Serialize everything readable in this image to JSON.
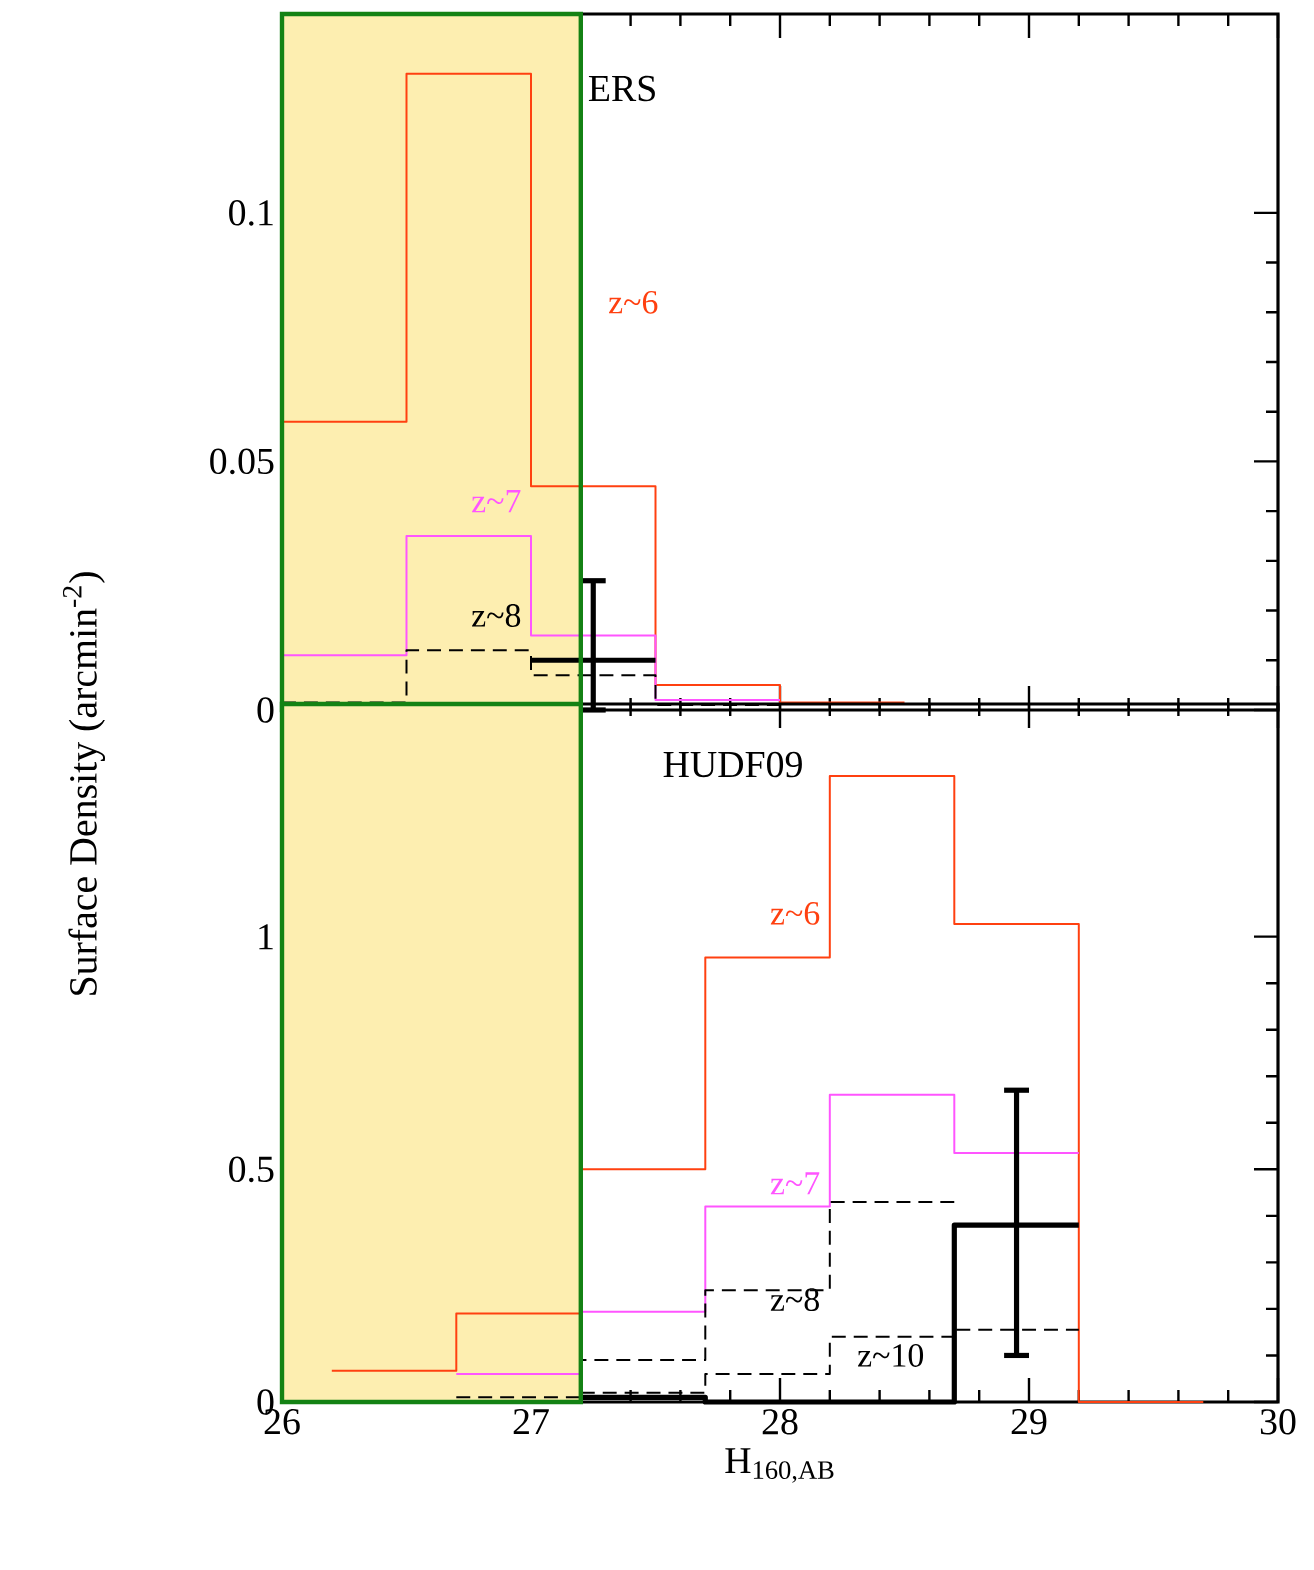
{
  "chart_data": [
    {
      "type": "step",
      "title": "ERS",
      "ylabel": "Surface Density (arcmin$^{-2}$)",
      "xlim": [
        26,
        30
      ],
      "ylim": [
        0,
        0.14
      ],
      "xticks": [
        26,
        27,
        28,
        29,
        30
      ],
      "yticks": [
        0,
        0.05,
        0.1
      ],
      "tick_labels": "y",
      "bands": [
        {
          "axis": "x",
          "from": 26,
          "to": 27.2,
          "color": "#fdeeb0"
        }
      ],
      "series": [
        {
          "name": "z~6",
          "color": "#ff4010",
          "line_style": "solid",
          "x": [
            26,
            26.5,
            27,
            27.5,
            28,
            28.5
          ],
          "values": [
            0.058,
            0.128,
            0.045,
            0.005,
            0.0015,
            0.0015
          ]
        },
        {
          "name": "z~7",
          "color": "#ff55ff",
          "line_style": "solid",
          "x": [
            26,
            26.5,
            27,
            27.5,
            28
          ],
          "values": [
            0.011,
            0.035,
            0.015,
            0.002,
            0.002
          ]
        },
        {
          "name": "z~8",
          "color": "#000000",
          "line_style": "dashed",
          "x": [
            26,
            26.5,
            27,
            27.5,
            28
          ],
          "values": [
            0.0015,
            0.012,
            0.007,
            0.001,
            0.001
          ]
        },
        {
          "color": "#000000",
          "line_style": "solid",
          "x": [
            27,
            27.25,
            27.5
          ],
          "values": [
            0.01,
            0.01,
            0.01
          ],
          "errors": [
            null,
            [
              0,
              0.026
            ],
            null
          ]
        }
      ]
    },
    {
      "type": "step",
      "title": "HUDF09",
      "xlabel": "H$_{160,AB}$",
      "xlim": [
        26,
        30
      ],
      "ylim": [
        0,
        1.5
      ],
      "xticks": [
        26,
        27,
        28,
        29,
        30
      ],
      "yticks": [
        0,
        0.5,
        1
      ],
      "bands": [
        {
          "axis": "x",
          "from": 26,
          "to": 27.2,
          "color": "#fdeeb0"
        }
      ],
      "series": [
        {
          "name": "z~6",
          "color": "#ff4010",
          "line_style": "solid",
          "x": [
            26.2,
            26.7,
            27.2,
            27.7,
            28.2,
            28.7,
            29.2,
            29.7
          ],
          "values": [
            0.067,
            0.19,
            0.5,
            0.955,
            1.345,
            1.027,
            0,
            0
          ]
        },
        {
          "name": "z~7",
          "color": "#ff55ff",
          "line_style": "solid",
          "x": [
            26.7,
            27.2,
            27.7,
            28.2,
            28.7,
            29.2
          ],
          "values": [
            0.06,
            0.194,
            0.42,
            0.66,
            0.535,
            0.535
          ]
        },
        {
          "name": "z~8",
          "color": "#000000",
          "line_style": "dashed",
          "x": [
            26.7,
            27.2,
            27.7,
            28.2,
            28.7
          ],
          "values": [
            0.01,
            0.09,
            0.24,
            0.43,
            0.43
          ]
        },
        {
          "name": "z~10",
          "color": "#000000",
          "line_style": "dashed",
          "x": [
            27.2,
            27.7,
            28.2,
            28.7,
            29.2
          ],
          "values": [
            0.02,
            0.06,
            0.14,
            0.155,
            0.155
          ]
        },
        {
          "color": "#000000",
          "line_style": "solid",
          "x": [
            27.2,
            27.7,
            28.2,
            28.7,
            28.95,
            29.2
          ],
          "values": [
            0.01,
            0,
            0,
            0.38,
            0.38,
            0.38
          ],
          "errors": [
            null,
            null,
            null,
            null,
            [
              0.1,
              0.67
            ],
            null
          ]
        }
      ]
    }
  ]
}
